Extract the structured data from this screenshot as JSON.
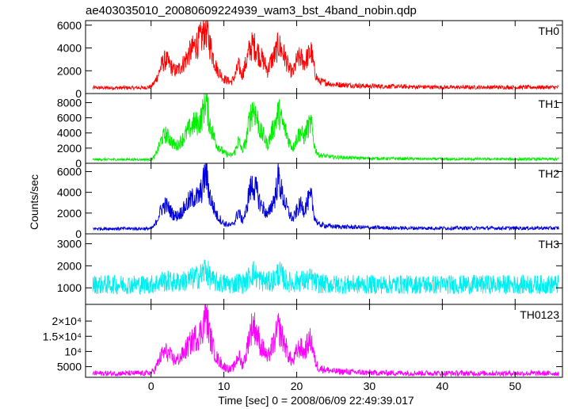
{
  "chart_data": {
    "type": "line",
    "title": "ae403035010_20080609224939_wam3_bst_4band_nobin.qdp",
    "xlabel": "Time [sec] 0 = 2008/06/09 22:49:39.017",
    "ylabel": "Counts/sec",
    "xlim": [
      -9,
      56.5
    ],
    "x_ticks": [
      0,
      10,
      20,
      30,
      40,
      50
    ],
    "x_tick_labels": [
      "0",
      "10",
      "20",
      "30",
      "40",
      "50"
    ],
    "grid": false,
    "x": [
      -8,
      -6,
      -4,
      -2,
      -1,
      0,
      0.5,
      1,
      1.5,
      2,
      2.5,
      3,
      3.5,
      4,
      4.5,
      5,
      5.5,
      6,
      6.5,
      7,
      7.5,
      8,
      8.5,
      9,
      10,
      11,
      11.5,
      12,
      12.5,
      13,
      13.5,
      14,
      14.5,
      15,
      15.5,
      16,
      16.5,
      17,
      17.5,
      18,
      18.5,
      19,
      19.5,
      20,
      20.5,
      21,
      21.5,
      22,
      22.5,
      23,
      25,
      30,
      35,
      40,
      45,
      50,
      55,
      56
    ],
    "panels": [
      {
        "name": "TH0",
        "color": "#ff0000",
        "ylim": [
          0,
          6400
        ],
        "y_ticks": [
          0,
          2000,
          4000,
          6000
        ],
        "y_tick_labels": [
          "0",
          "2000",
          "4000",
          "6000"
        ],
        "values": [
          500,
          500,
          500,
          500,
          500,
          600,
          1000,
          1700,
          2600,
          3000,
          2600,
          2100,
          2000,
          2300,
          2700,
          3300,
          3700,
          4200,
          4500,
          5000,
          5900,
          4500,
          3300,
          2200,
          1300,
          1000,
          1500,
          2500,
          1600,
          2600,
          3800,
          4300,
          3900,
          3200,
          2800,
          2000,
          2900,
          3400,
          4300,
          3700,
          3000,
          2100,
          1800,
          2900,
          3200,
          2700,
          3200,
          3700,
          1800,
          1100,
          800,
          650,
          600,
          550,
          550,
          550,
          550,
          550
        ]
      },
      {
        "name": "TH1",
        "color": "#00ee00",
        "ylim": [
          0,
          9200
        ],
        "y_ticks": [
          0,
          2000,
          4000,
          6000,
          8000
        ],
        "y_tick_labels": [
          "0",
          "2000",
          "4000",
          "6000",
          "8000"
        ],
        "values": [
          500,
          500,
          500,
          500,
          500,
          500,
          900,
          2000,
          3300,
          3800,
          3300,
          2600,
          2300,
          2800,
          3400,
          4200,
          4800,
          5300,
          5200,
          6200,
          8600,
          5500,
          3800,
          2500,
          1400,
          1000,
          1500,
          3000,
          1700,
          2700,
          5700,
          7400,
          6200,
          4200,
          3500,
          2400,
          3900,
          5200,
          6800,
          5400,
          4200,
          2800,
          2000,
          3300,
          4200,
          3400,
          4700,
          5200,
          2000,
          1100,
          800,
          650,
          600,
          550,
          550,
          550,
          550,
          550
        ]
      },
      {
        "name": "TH2",
        "color": "#0000dd",
        "ylim": [
          0,
          6800
        ],
        "y_ticks": [
          0,
          2000,
          4000,
          6000
        ],
        "y_tick_labels": [
          "0",
          "2000",
          "4000",
          "6000"
        ],
        "values": [
          500,
          500,
          500,
          500,
          500,
          500,
          800,
          1700,
          2500,
          2800,
          2400,
          1900,
          1700,
          2000,
          2400,
          3000,
          3300,
          3600,
          3500,
          4300,
          6000,
          3900,
          2700,
          1800,
          1000,
          800,
          1200,
          2200,
          1300,
          2000,
          4100,
          4700,
          4100,
          2900,
          2400,
          1700,
          2700,
          3500,
          5500,
          3800,
          2800,
          1900,
          1400,
          2200,
          2800,
          2300,
          3100,
          3500,
          1500,
          900,
          700,
          600,
          550,
          550,
          550,
          550,
          550,
          550
        ]
      },
      {
        "name": "TH3",
        "color": "#00eeee",
        "ylim": [
          250,
          3450
        ],
        "y_ticks": [
          1000,
          2000,
          3000
        ],
        "y_tick_labels": [
          "1000",
          "2000",
          "3000"
        ],
        "values": [
          1150,
          1150,
          1150,
          1150,
          1150,
          1150,
          1200,
          1250,
          1300,
          1300,
          1300,
          1250,
          1250,
          1300,
          1300,
          1350,
          1400,
          1450,
          1500,
          1600,
          1900,
          1500,
          1300,
          1250,
          1200,
          1150,
          1200,
          1250,
          1200,
          1250,
          1500,
          1700,
          1500,
          1350,
          1300,
          1250,
          1300,
          1400,
          1700,
          1500,
          1350,
          1250,
          1200,
          1300,
          1350,
          1300,
          1350,
          1400,
          1250,
          1200,
          1150,
          1150,
          1150,
          1150,
          1150,
          1150,
          1150,
          1150
        ]
      },
      {
        "name": "TH0123",
        "color": "#ff00ff",
        "ylim": [
          1500,
          25500
        ],
        "y_ticks": [
          5000,
          10000,
          15000,
          20000
        ],
        "y_tick_labels": [
          "5000",
          "10⁴",
          "1.5×10⁴",
          "2×10⁴"
        ],
        "values": [
          2800,
          2800,
          2800,
          2800,
          2800,
          3000,
          4000,
          6500,
          9000,
          10000,
          9000,
          7500,
          7000,
          8000,
          9500,
          11500,
          13000,
          14500,
          15000,
          17000,
          23000,
          16000,
          11500,
          8000,
          5000,
          4000,
          5500,
          9000,
          5500,
          8500,
          15500,
          19000,
          16500,
          12000,
          10500,
          7500,
          11000,
          13500,
          18000,
          14500,
          11500,
          8000,
          6500,
          10000,
          11500,
          9500,
          12500,
          14000,
          7000,
          4500,
          3500,
          3000,
          2900,
          2850,
          2800,
          2800,
          2800,
          2800
        ]
      }
    ]
  }
}
